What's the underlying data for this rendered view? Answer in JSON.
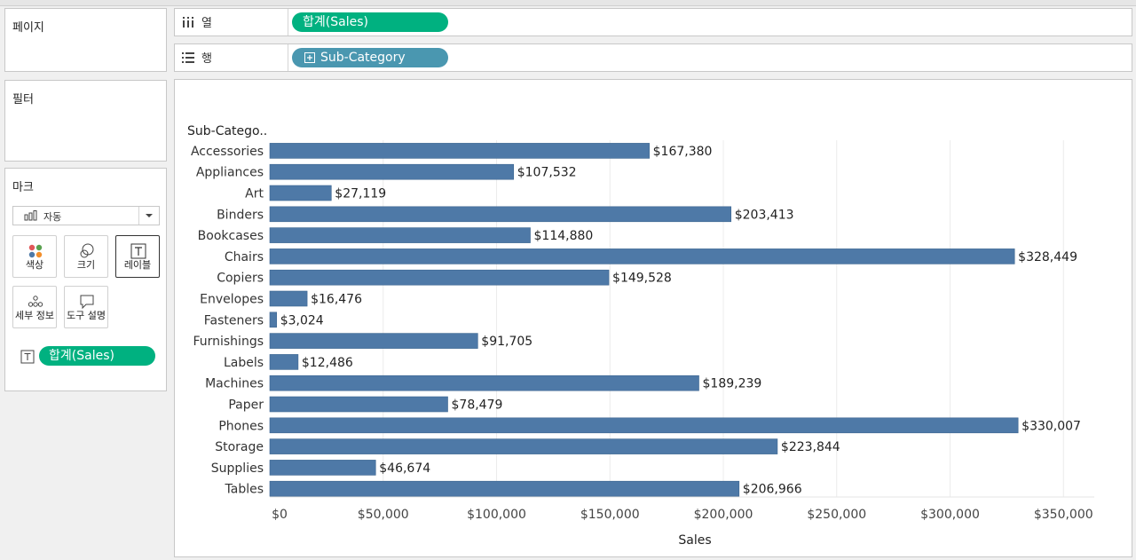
{
  "panels": {
    "pages_title": "페이지",
    "filters_title": "필터",
    "marks_title": "마크"
  },
  "shelves": {
    "columns": {
      "label": "열",
      "pill": "합계(Sales)"
    },
    "rows": {
      "label": "행",
      "pill": "Sub-Category"
    }
  },
  "marks": {
    "type_value": "자동",
    "buttons": [
      "색상",
      "크기",
      "레이블",
      "세부 정보",
      "도구 설명"
    ],
    "label_pill": "합계(Sales)"
  },
  "colors": {
    "bar": "#4e79a7",
    "green_pill": "#00b180",
    "teal_pill": "#4a97b0"
  },
  "chart_data": {
    "type": "bar",
    "orientation": "horizontal",
    "row_header": "Sub-Catego..",
    "categories": [
      "Accessories",
      "Appliances",
      "Art",
      "Binders",
      "Bookcases",
      "Chairs",
      "Copiers",
      "Envelopes",
      "Fasteners",
      "Furnishings",
      "Labels",
      "Machines",
      "Paper",
      "Phones",
      "Storage",
      "Supplies",
      "Tables"
    ],
    "values": [
      167380,
      107532,
      27119,
      203413,
      114880,
      328449,
      149528,
      16476,
      3024,
      91705,
      12486,
      189239,
      78479,
      330007,
      223844,
      46674,
      206966
    ],
    "value_labels": [
      "$167,380",
      "$107,532",
      "$27,119",
      "$203,413",
      "$114,880",
      "$328,449",
      "$149,528",
      "$16,476",
      "$3,024",
      "$91,705",
      "$12,486",
      "$189,239",
      "$78,479",
      "$330,007",
      "$223,844",
      "$46,674",
      "$206,966"
    ],
    "xlabel": "Sales",
    "xlim": [
      0,
      375000
    ],
    "x_ticks": [
      0,
      50000,
      100000,
      150000,
      200000,
      250000,
      300000,
      350000
    ],
    "x_tick_labels": [
      "$0",
      "$50,000",
      "$100,000",
      "$150,000",
      "$200,000",
      "$250,000",
      "$300,000",
      "$350,000"
    ],
    "grid": true
  }
}
